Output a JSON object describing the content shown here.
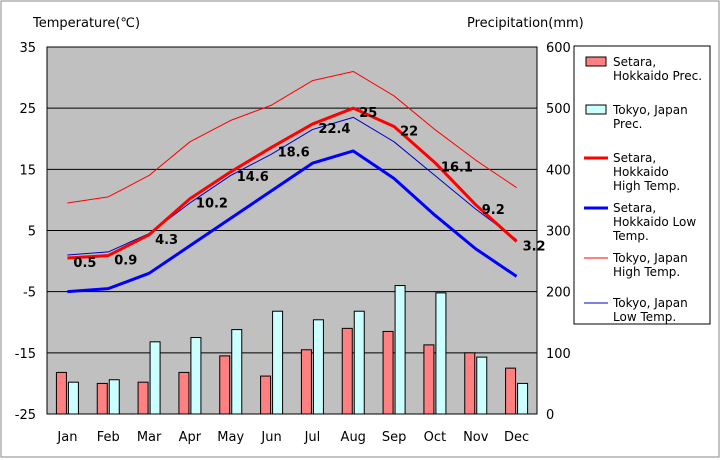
{
  "chart_data": {
    "type": "bar+line",
    "categories": [
      "Jan",
      "Feb",
      "Mar",
      "Apr",
      "May",
      "Jun",
      "Jul",
      "Aug",
      "Sep",
      "Oct",
      "Nov",
      "Dec"
    ],
    "left_axis": {
      "title": "Temperature(℃)",
      "min": -25,
      "max": 35,
      "ticks": [
        35,
        25,
        15,
        5,
        -5,
        -15,
        -25
      ]
    },
    "right_axis": {
      "title": "Precipitation(mm)",
      "min": 0,
      "max": 600,
      "ticks": [
        600,
        500,
        400,
        300,
        200,
        100,
        0
      ]
    },
    "bar_series": [
      {
        "name": "Setara, Hokkaido Prec.",
        "legend_lines": [
          "Setara,",
          "Hokkaido Prec."
        ],
        "color": "#ff8080",
        "values": [
          68,
          50,
          52,
          68,
          95,
          62,
          105,
          140,
          135,
          113,
          100,
          75
        ]
      },
      {
        "name": "Tokyo, Japan Prec.",
        "legend_lines": [
          "Tokyo, Japan",
          "Prec."
        ],
        "color": "#ccffff",
        "values": [
          52,
          56,
          118,
          125,
          138,
          168,
          154,
          168,
          210,
          198,
          93,
          50
        ]
      }
    ],
    "line_series": [
      {
        "name": "Setara, Hokkaido High Temp.",
        "legend_lines": [
          "Setara,",
          "Hokkaido",
          "High Temp."
        ],
        "color": "#ff0000",
        "width": 3,
        "values": [
          0.5,
          0.9,
          4.3,
          10.2,
          14.6,
          18.6,
          22.4,
          25,
          22,
          16.1,
          9.2,
          3.2
        ],
        "labels": [
          "0.5",
          "0.9",
          "4.3",
          "10.2",
          "14.6",
          "18.6",
          "22.4",
          "25",
          "22",
          "16.1",
          "9.2",
          "3.2"
        ]
      },
      {
        "name": "Setara, Hokkaido Low Temp.",
        "legend_lines": [
          "Setara,",
          "Hokkaido Low",
          "Temp."
        ],
        "color": "#0000ff",
        "width": 3,
        "values": [
          -5,
          -4.5,
          -2,
          2.5,
          7,
          11.5,
          16,
          18,
          13.5,
          7.5,
          2,
          -2.5
        ]
      },
      {
        "name": "Tokyo, Japan High Temp.",
        "legend_lines": [
          "Tokyo, Japan",
          "High Temp."
        ],
        "color": "#ff0000",
        "width": 1,
        "values": [
          9.5,
          10.5,
          14,
          19.5,
          23,
          25.5,
          29.5,
          31,
          27,
          21.5,
          16.5,
          12
        ]
      },
      {
        "name": "Tokyo, Japan Low Temp.",
        "legend_lines": [
          "Tokyo, Japan",
          "Low Temp."
        ],
        "color": "#0000cc",
        "width": 1,
        "values": [
          1,
          1.5,
          4.5,
          9.5,
          14,
          17.5,
          21.5,
          23.5,
          19.5,
          14,
          8.5,
          3.5
        ]
      }
    ]
  }
}
